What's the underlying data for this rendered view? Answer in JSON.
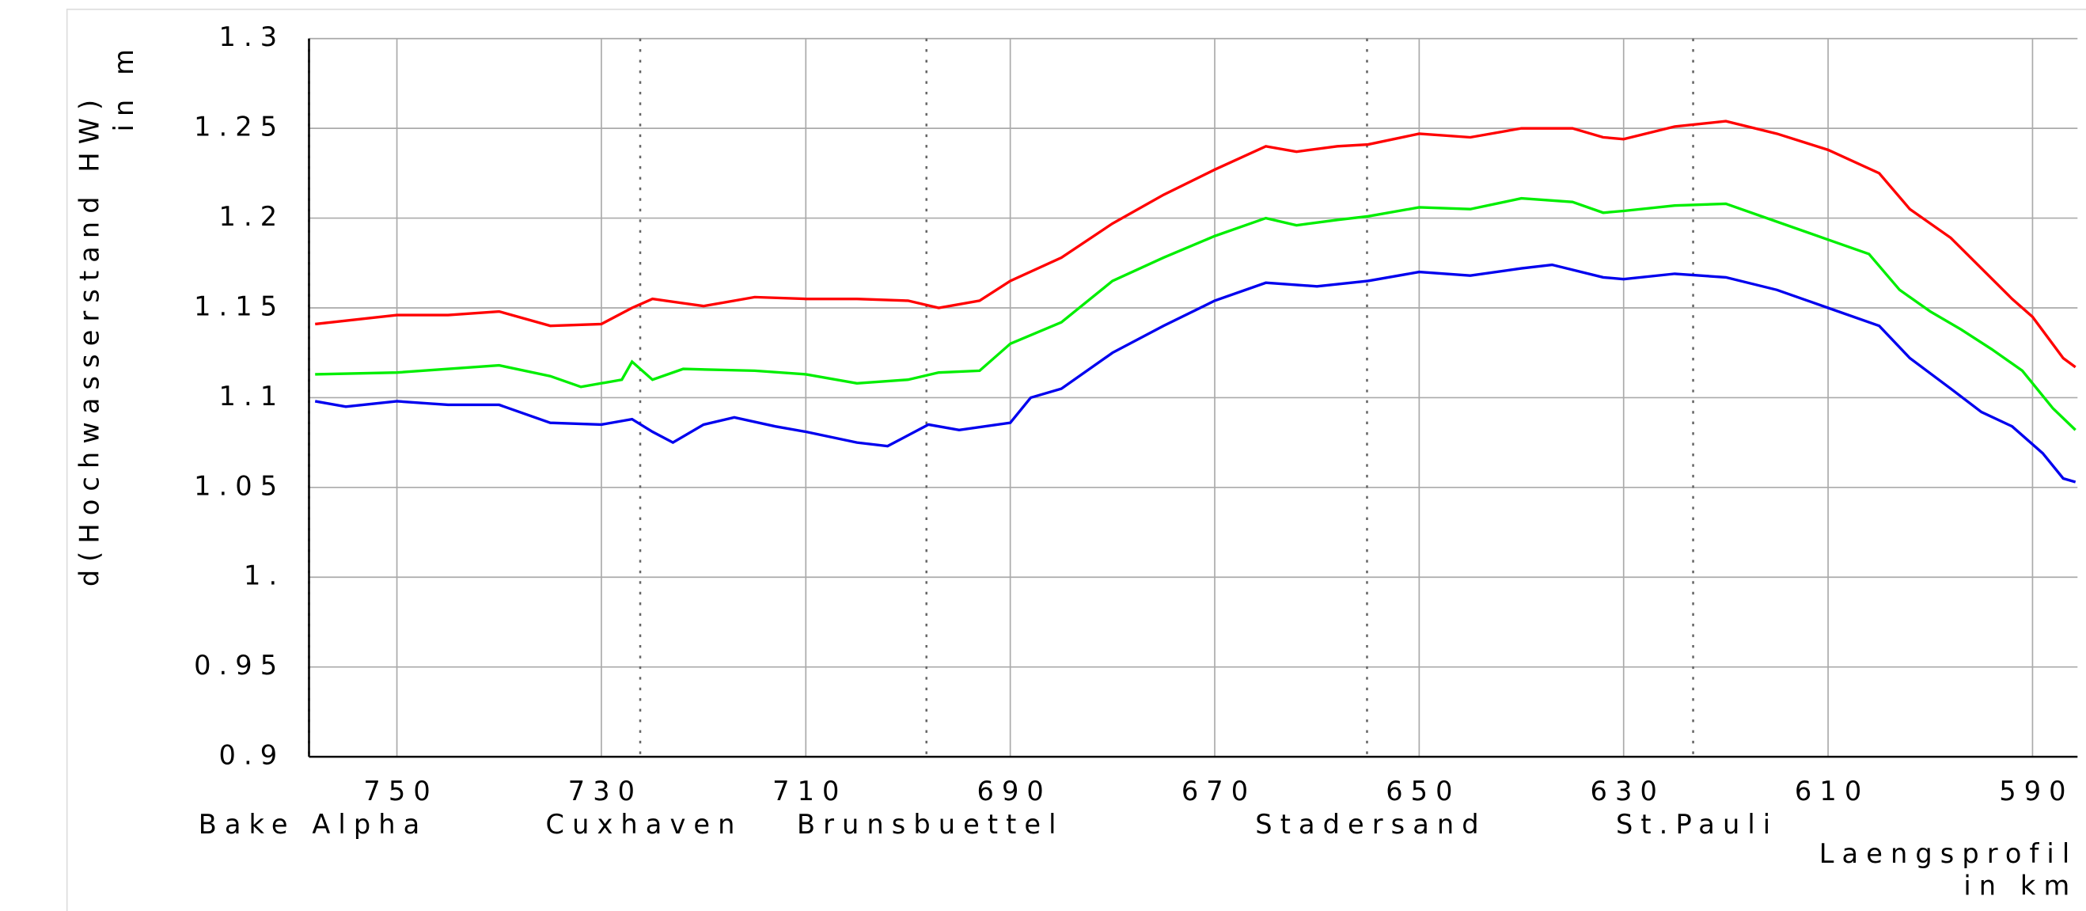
{
  "chart_data": {
    "type": "line",
    "ylabel": [
      "d(Hochwasserstand HW)",
      "in m"
    ],
    "xlabel": [
      "Laengsprofil",
      "in km"
    ],
    "xlim": [
      758.6,
      585.6
    ],
    "ylim": [
      0.9,
      1.3
    ],
    "xticks": [
      750,
      730,
      710,
      690,
      670,
      650,
      630,
      610,
      590
    ],
    "yticks": [
      1.3,
      1.25,
      1.2,
      1.15,
      1.1,
      1.05,
      {
        "value": 1,
        "label": "1."
      },
      0.95,
      0.9
    ],
    "grid": true,
    "locations": [
      {
        "name": "Bake Alpha",
        "km": 758.6
      },
      {
        "name": "Cuxhaven",
        "km": 726.2
      },
      {
        "name": "Brunsbuettel",
        "km": 698.2
      },
      {
        "name": "Stadersand",
        "km": 655.1
      },
      {
        "name": "St.Pauli",
        "km": 623.2
      }
    ],
    "series": [
      {
        "color": "#ff0000",
        "x": [
          758,
          750,
          745,
          740,
          735,
          730,
          727,
          725,
          720,
          715,
          710,
          705,
          700,
          697,
          693,
          690,
          685,
          680,
          675,
          670,
          665,
          662,
          658,
          655,
          650,
          645,
          640,
          635,
          632,
          630,
          625,
          620,
          615,
          610,
          605,
          602,
          598,
          595,
          592,
          590,
          587,
          585.8
        ],
        "values": [
          1.141,
          1.146,
          1.146,
          1.148,
          1.14,
          1.141,
          1.15,
          1.155,
          1.151,
          1.156,
          1.155,
          1.155,
          1.154,
          1.15,
          1.154,
          1.165,
          1.178,
          1.197,
          1.213,
          1.227,
          1.24,
          1.237,
          1.24,
          1.241,
          1.247,
          1.245,
          1.25,
          1.25,
          1.245,
          1.244,
          1.251,
          1.254,
          1.247,
          1.238,
          1.225,
          1.205,
          1.189,
          1.172,
          1.155,
          1.145,
          1.122,
          1.117
        ]
      },
      {
        "color": "#00ee00",
        "x": [
          758,
          750,
          740,
          735,
          732,
          728,
          727,
          725,
          722,
          715,
          710,
          705,
          700,
          697,
          693,
          690,
          685,
          680,
          675,
          670,
          665,
          662,
          658,
          655,
          650,
          645,
          640,
          635,
          632,
          630,
          625,
          620,
          615,
          610,
          606,
          603,
          600,
          597,
          594,
          591,
          588,
          585.8
        ],
        "values": [
          1.113,
          1.114,
          1.118,
          1.112,
          1.106,
          1.11,
          1.12,
          1.11,
          1.116,
          1.115,
          1.113,
          1.108,
          1.11,
          1.114,
          1.115,
          1.13,
          1.142,
          1.165,
          1.178,
          1.19,
          1.2,
          1.196,
          1.199,
          1.201,
          1.206,
          1.205,
          1.211,
          1.209,
          1.203,
          1.204,
          1.207,
          1.208,
          1.198,
          1.188,
          1.18,
          1.16,
          1.148,
          1.138,
          1.127,
          1.115,
          1.094,
          1.082
        ]
      },
      {
        "color": "#0000ee",
        "x": [
          758,
          755,
          750,
          745,
          740,
          735,
          730,
          727,
          725,
          723,
          720,
          717,
          713,
          710,
          705,
          702,
          698,
          695,
          690,
          688,
          685,
          680,
          675,
          670,
          665,
          660,
          655,
          650,
          645,
          640,
          637,
          632,
          630,
          625,
          620,
          615,
          610,
          605,
          602,
          598,
          595,
          592,
          589,
          587,
          585.8
        ],
        "values": [
          1.098,
          1.095,
          1.098,
          1.096,
          1.096,
          1.086,
          1.085,
          1.088,
          1.081,
          1.075,
          1.085,
          1.089,
          1.084,
          1.081,
          1.075,
          1.073,
          1.085,
          1.082,
          1.086,
          1.1,
          1.105,
          1.125,
          1.14,
          1.154,
          1.164,
          1.162,
          1.165,
          1.17,
          1.168,
          1.172,
          1.174,
          1.167,
          1.166,
          1.169,
          1.167,
          1.16,
          1.15,
          1.14,
          1.122,
          1.105,
          1.092,
          1.084,
          1.069,
          1.055,
          1.053
        ]
      }
    ]
  }
}
